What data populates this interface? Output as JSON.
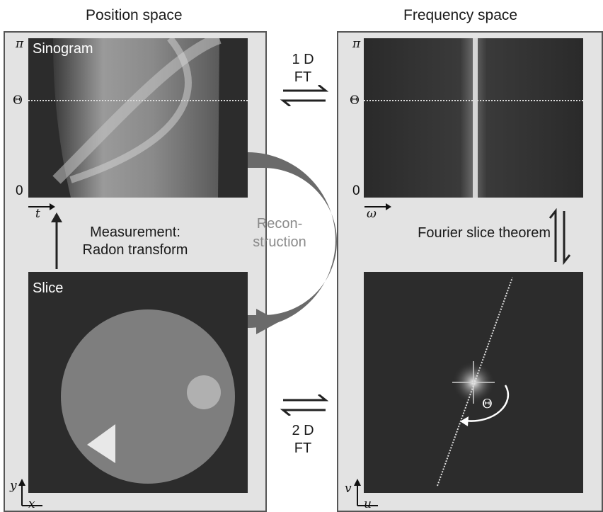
{
  "headings": {
    "position_space": "Position space",
    "frequency_space": "Frequency space"
  },
  "sinogram": {
    "label": "Sinogram",
    "y_top": "π",
    "y_mid": "Θ",
    "y_bottom": "0",
    "x_axis": "t"
  },
  "freq_sinogram": {
    "y_top": "π",
    "y_mid": "Θ",
    "y_bottom": "0",
    "x_axis": "ω"
  },
  "slice": {
    "label": "Slice",
    "x_axis": "x",
    "y_axis": "y"
  },
  "fourier_slice": {
    "x_axis": "u",
    "y_axis": "v",
    "angle": "Θ"
  },
  "arrows": {
    "ft_1d": {
      "line1": "1 D",
      "line2": "FT"
    },
    "ft_2d": {
      "line1": "2 D",
      "line2": "FT"
    },
    "measurement": {
      "line1": "Measurement:",
      "line2": "Radon transform"
    },
    "fourier_slice_theorem": "Fourier slice theorem"
  },
  "reconstruction": {
    "line1": "Recon-",
    "line2": "struction"
  },
  "colors": {
    "panel_bg": "#e3e3e3",
    "image_bg": "#2a2a2a",
    "recon_arrow": "#6a6a6a"
  }
}
